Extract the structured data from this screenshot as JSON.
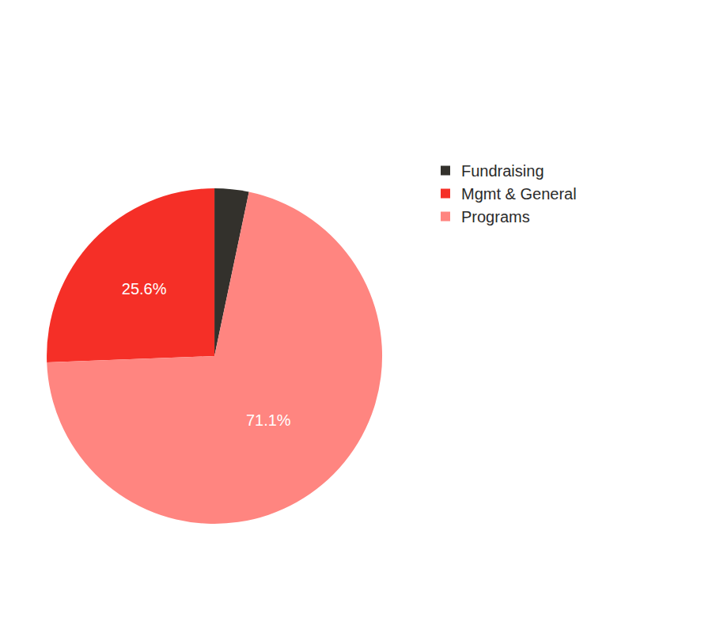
{
  "chart_data": {
    "type": "pie",
    "categories": [
      "Fundraising",
      "Mgmt & General",
      "Programs"
    ],
    "values": [
      3.3,
      25.6,
      71.1
    ],
    "value_labels": [
      null,
      "25.6%",
      "71.1%"
    ],
    "colors": [
      "#33312c",
      "#f52f27",
      "#ff8580"
    ],
    "data_labels": true,
    "legend": "right"
  }
}
